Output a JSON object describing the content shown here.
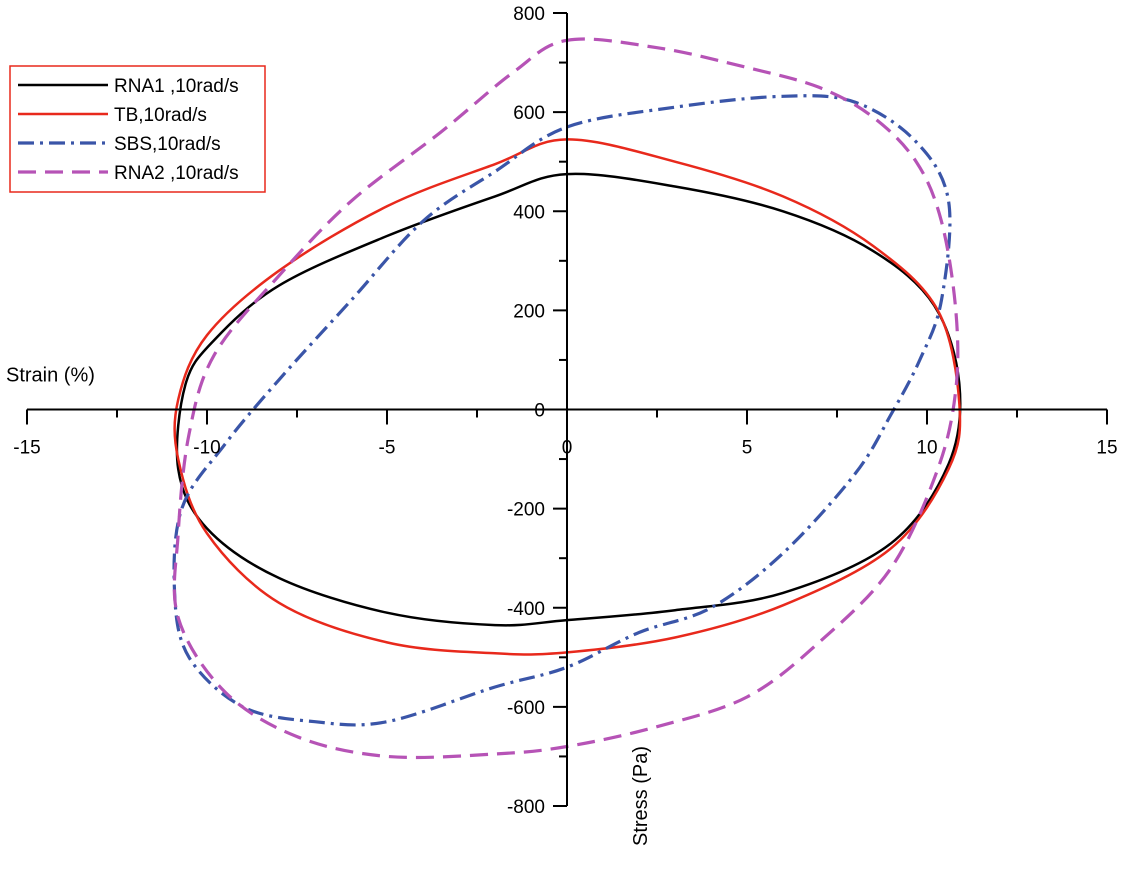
{
  "chart_data": {
    "type": "line",
    "title": "",
    "xlabel": "Strain (%)",
    "ylabel": "Stress (Pa)",
    "xlim": [
      -15,
      15
    ],
    "ylim": [
      -800,
      800
    ],
    "x_ticks": [
      -15,
      -10,
      -5,
      0,
      5,
      10,
      15
    ],
    "y_ticks": [
      -800,
      -600,
      -400,
      -200,
      0,
      200,
      400,
      600,
      800
    ],
    "axes_cross_at_origin": true,
    "grid": false,
    "legend_position": "top-left",
    "legend_framed": true,
    "legend_frame_color": "#e8291c",
    "series": [
      {
        "name": "RNA1 ,10rad/s",
        "color": "#000000",
        "line_style": "solid",
        "points": [
          [
            0,
            475
          ],
          [
            3,
            450
          ],
          [
            6,
            400
          ],
          [
            8.5,
            320
          ],
          [
            10.2,
            210
          ],
          [
            10.9,
            50
          ],
          [
            10.6,
            -110
          ],
          [
            9,
            -270
          ],
          [
            6,
            -370
          ],
          [
            3,
            -405
          ],
          [
            0,
            -425
          ],
          [
            -2,
            -435
          ],
          [
            -5,
            -410
          ],
          [
            -8,
            -340
          ],
          [
            -10,
            -240
          ],
          [
            -10.8,
            -120
          ],
          [
            -10.6,
            50
          ],
          [
            -9.8,
            140
          ],
          [
            -8,
            250
          ],
          [
            -5,
            350
          ],
          [
            -2,
            430
          ],
          [
            0,
            475
          ]
        ]
      },
      {
        "name": "TB,10rad/s",
        "color": "#e8291c",
        "line_style": "solid",
        "points": [
          [
            0,
            545
          ],
          [
            3,
            500
          ],
          [
            6,
            430
          ],
          [
            8.5,
            330
          ],
          [
            10.3,
            200
          ],
          [
            10.9,
            10
          ],
          [
            10.6,
            -120
          ],
          [
            9,
            -280
          ],
          [
            6,
            -395
          ],
          [
            3,
            -460
          ],
          [
            0,
            -490
          ],
          [
            -2,
            -492
          ],
          [
            -5,
            -470
          ],
          [
            -8,
            -390
          ],
          [
            -10,
            -250
          ],
          [
            -10.8,
            -100
          ],
          [
            -10.8,
            20
          ],
          [
            -10,
            150
          ],
          [
            -8,
            280
          ],
          [
            -5,
            410
          ],
          [
            -2,
            495
          ],
          [
            0,
            545
          ]
        ]
      },
      {
        "name": "SBS,10rad/s",
        "color": "#3a55a8",
        "line_style": "dash-dot",
        "points": [
          [
            0,
            570
          ],
          [
            3,
            610
          ],
          [
            6,
            632
          ],
          [
            8,
            620
          ],
          [
            9.7,
            540
          ],
          [
            10.6,
            420
          ],
          [
            10.4,
            220
          ],
          [
            9.8,
            100
          ],
          [
            9,
            -10
          ],
          [
            8,
            -130
          ],
          [
            6,
            -290
          ],
          [
            4,
            -400
          ],
          [
            2,
            -450
          ],
          [
            0,
            -520
          ],
          [
            -2,
            -560
          ],
          [
            -5,
            -630
          ],
          [
            -7,
            -630
          ],
          [
            -9,
            -600
          ],
          [
            -10.5,
            -500
          ],
          [
            -10.9,
            -370
          ],
          [
            -10.7,
            -200
          ],
          [
            -9.5,
            -70
          ],
          [
            -8,
            60
          ],
          [
            -6,
            220
          ],
          [
            -4,
            380
          ],
          [
            -2,
            480
          ],
          [
            0,
            570
          ]
        ]
      },
      {
        "name": "RNA2 ,10rad/s",
        "color": "#b653b6",
        "line_style": "dashed",
        "points": [
          [
            0,
            745
          ],
          [
            2.5,
            730
          ],
          [
            5,
            690
          ],
          [
            7,
            650
          ],
          [
            8.5,
            590
          ],
          [
            9.7,
            500
          ],
          [
            10.4,
            380
          ],
          [
            10.8,
            200
          ],
          [
            10.8,
            40
          ],
          [
            10.3,
            -120
          ],
          [
            9,
            -320
          ],
          [
            7,
            -470
          ],
          [
            5,
            -580
          ],
          [
            2.5,
            -640
          ],
          [
            0,
            -680
          ],
          [
            -2,
            -695
          ],
          [
            -5,
            -700
          ],
          [
            -7.5,
            -660
          ],
          [
            -9.5,
            -570
          ],
          [
            -10.8,
            -420
          ],
          [
            -10.8,
            -250
          ],
          [
            -10.5,
            -50
          ],
          [
            -9.8,
            110
          ],
          [
            -8,
            270
          ],
          [
            -6,
            420
          ],
          [
            -3.5,
            560
          ],
          [
            -1.5,
            680
          ],
          [
            0,
            745
          ]
        ]
      }
    ]
  }
}
